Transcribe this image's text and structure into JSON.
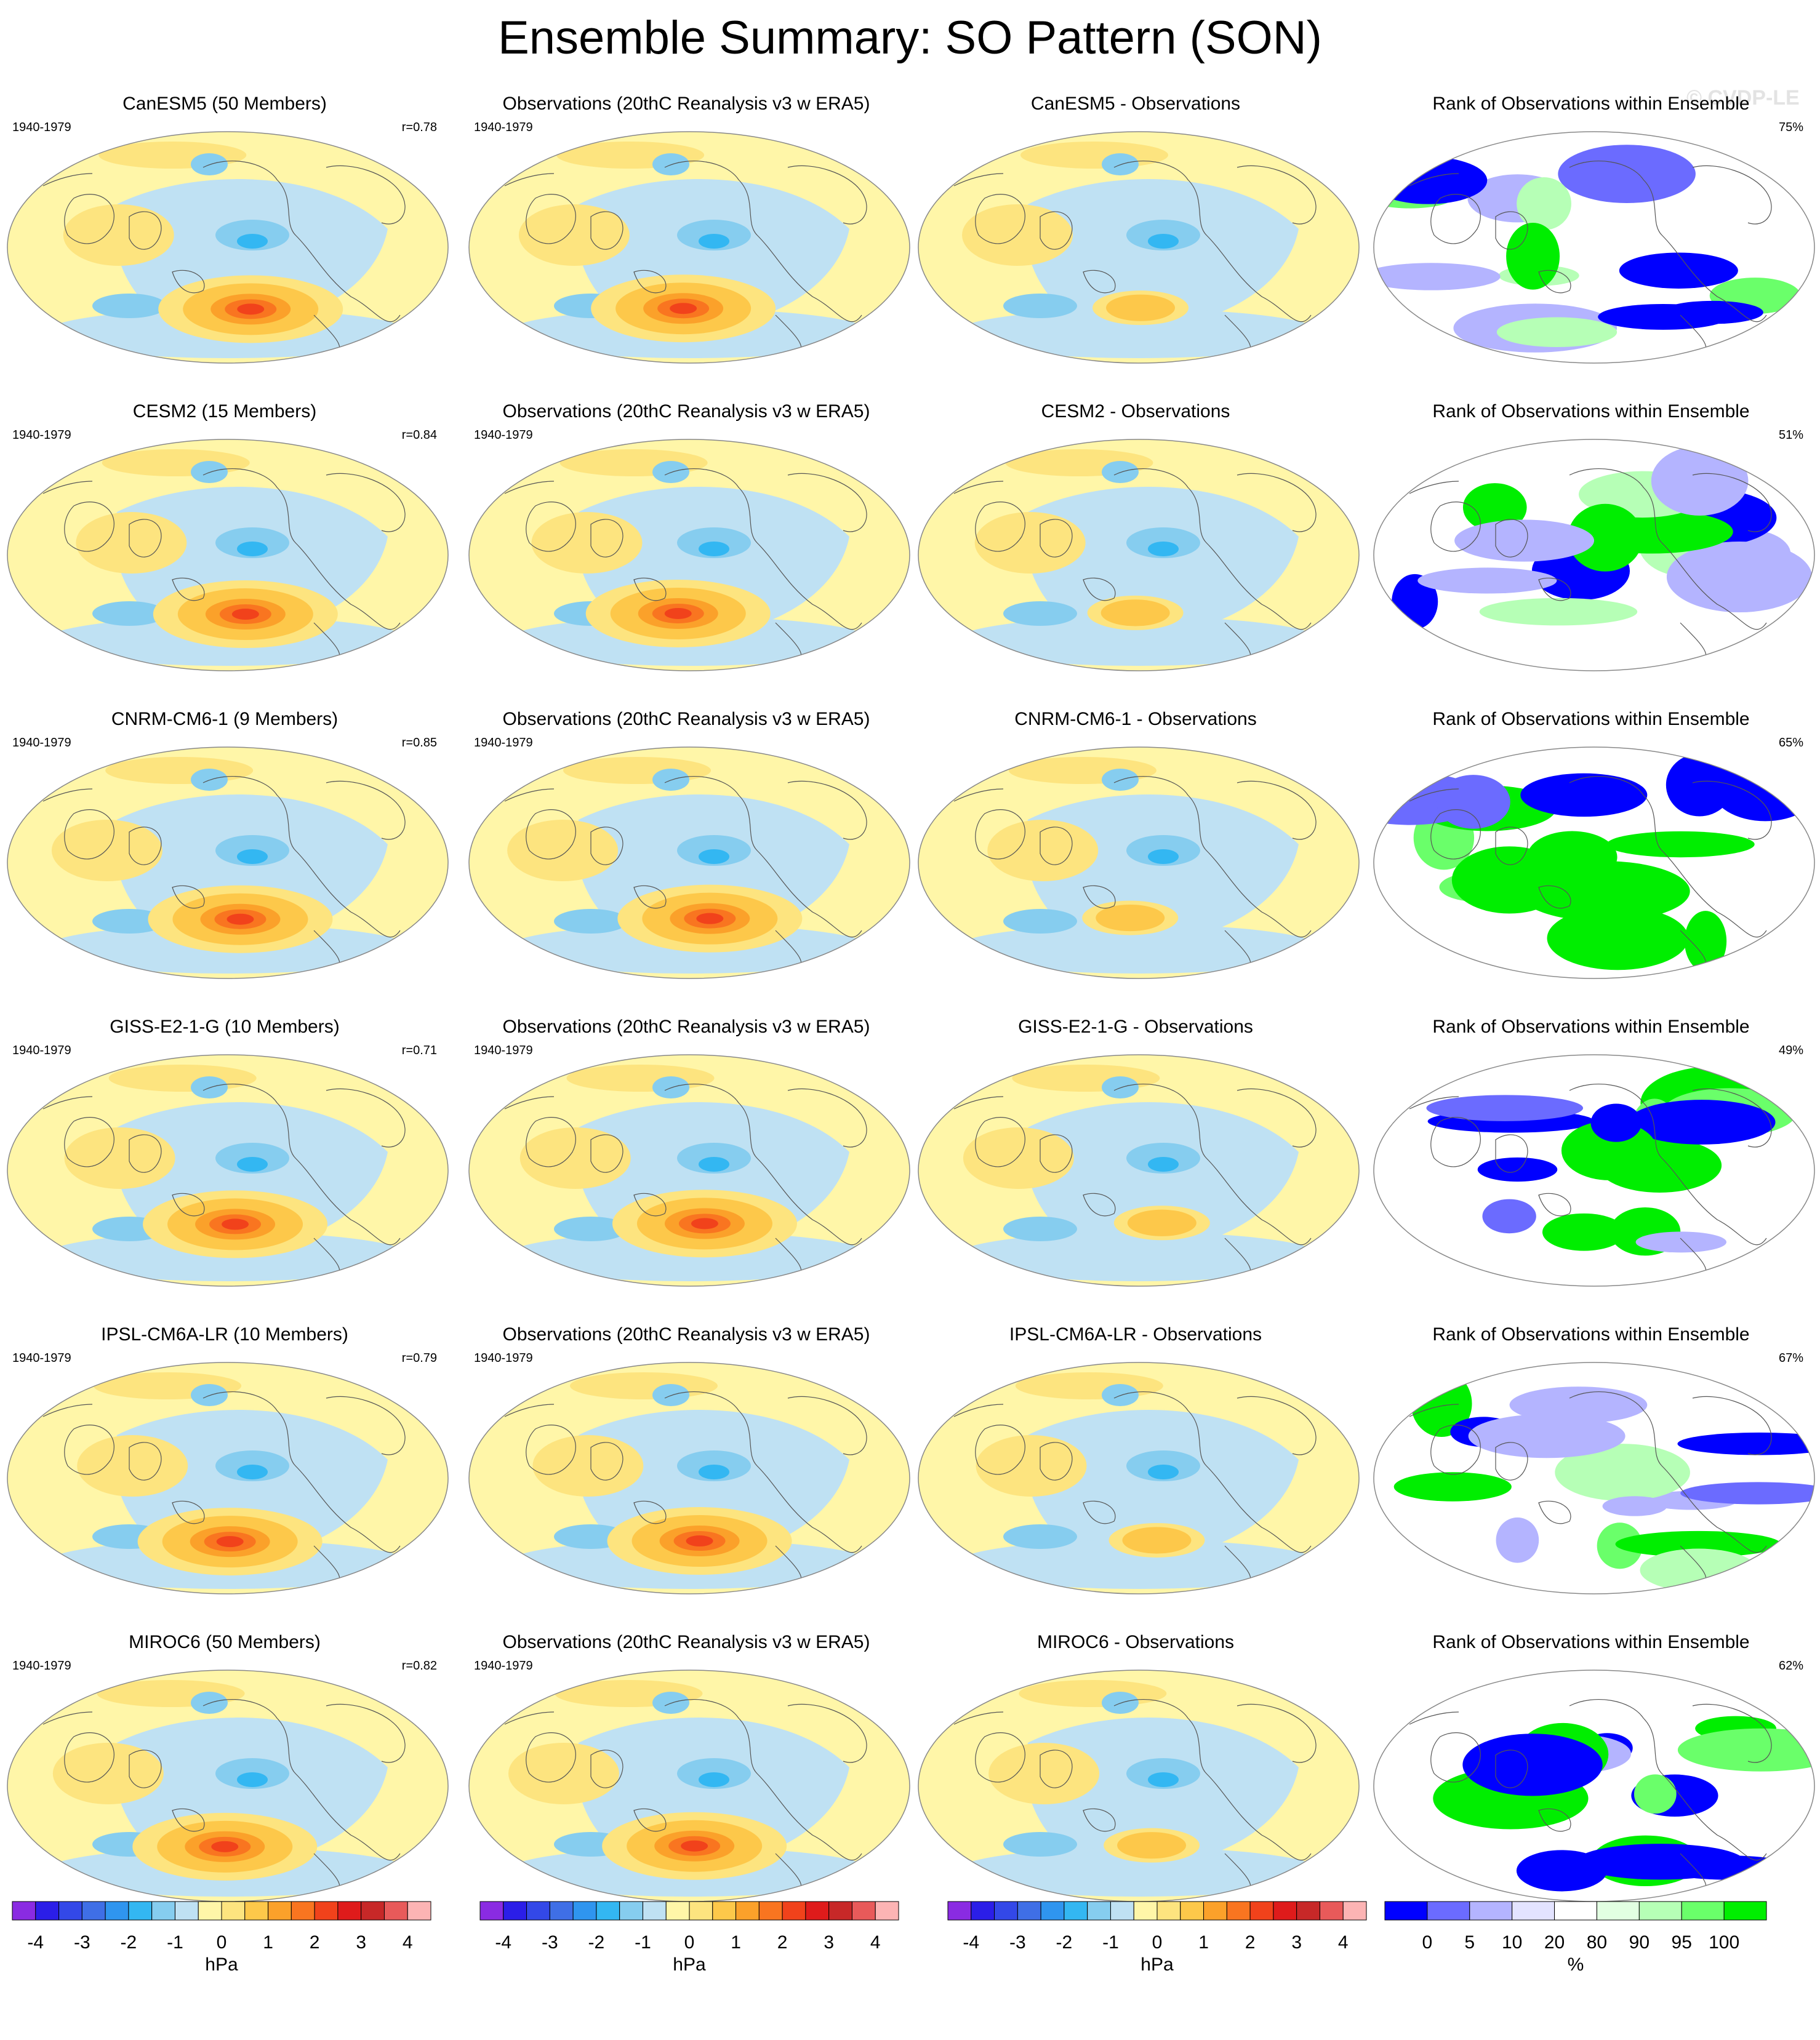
{
  "title": "Ensemble Summary: SO Pattern (SON)",
  "watermark": "© CVDP-LE",
  "colors": {
    "coast": "#555555",
    "ocean_border": "#888888",
    "div_scale": [
      "#8a2be2",
      "#2b1ee8",
      "#3348e8",
      "#3f6fe6",
      "#2f95ef",
      "#33b7f2",
      "#86cdef",
      "#bfe1f3",
      "#fff6a8",
      "#fde47f",
      "#fdc84a",
      "#fba12a",
      "#f97520",
      "#f1421b",
      "#df1b1b",
      "#c72828",
      "#e85a5a",
      "#fcb4b4"
    ],
    "rank_scale": [
      "#0000ff",
      "#6b6bff",
      "#b4b4ff",
      "#e3e3ff",
      "#ffffff",
      "#e2ffe2",
      "#b6ffb6",
      "#6aff6a",
      "#00ee00"
    ]
  },
  "rows": [
    {
      "model": "CanESM5",
      "model_title": "CanESM5 (50 Members)",
      "years": "1940-1979",
      "r": "r=0.78",
      "obs_title": "Observations (20thC Reanalysis v3 w ERA5)",
      "obs_years": "1940-1979",
      "diff_title": "CanESM5 - Observations",
      "rank_title": "Rank of Observations within Ensemble",
      "rank_pct": "75%"
    },
    {
      "model": "CESM2",
      "model_title": "CESM2 (15 Members)",
      "years": "1940-1979",
      "r": "r=0.84",
      "obs_title": "Observations (20thC Reanalysis v3 w ERA5)",
      "obs_years": "1940-1979",
      "diff_title": "CESM2 - Observations",
      "rank_title": "Rank of Observations within Ensemble",
      "rank_pct": "51%"
    },
    {
      "model": "CNRM-CM6-1",
      "model_title": "CNRM-CM6-1 (9 Members)",
      "years": "1940-1979",
      "r": "r=0.85",
      "obs_title": "Observations (20thC Reanalysis v3 w ERA5)",
      "obs_years": "1940-1979",
      "diff_title": "CNRM-CM6-1 - Observations",
      "rank_title": "Rank of Observations within Ensemble",
      "rank_pct": "65%"
    },
    {
      "model": "GISS-E2-1-G",
      "model_title": "GISS-E2-1-G (10 Members)",
      "years": "1940-1979",
      "r": "r=0.71",
      "obs_title": "Observations (20thC Reanalysis v3 w ERA5)",
      "obs_years": "1940-1979",
      "diff_title": "GISS-E2-1-G - Observations",
      "rank_title": "Rank of Observations within Ensemble",
      "rank_pct": "49%"
    },
    {
      "model": "IPSL-CM6A-LR",
      "model_title": "IPSL-CM6A-LR (10 Members)",
      "years": "1940-1979",
      "r": "r=0.79",
      "obs_title": "Observations (20thC Reanalysis v3 w ERA5)",
      "obs_years": "1940-1979",
      "diff_title": "IPSL-CM6A-LR - Observations",
      "rank_title": "Rank of Observations within Ensemble",
      "rank_pct": "67%"
    },
    {
      "model": "MIROC6",
      "model_title": "MIROC6 (50 Members)",
      "years": "1940-1979",
      "r": "r=0.82",
      "obs_title": "Observations (20thC Reanalysis v3 w ERA5)",
      "obs_years": "1940-1979",
      "diff_title": "MIROC6 - Observations",
      "rank_title": "Rank of Observations within Ensemble",
      "rank_pct": "62%"
    }
  ],
  "colorbars": {
    "hpa": {
      "ticks": [
        "-4",
        "-3",
        "-2",
        "-1",
        "0",
        "1",
        "2",
        "3",
        "4"
      ],
      "unit": "hPa"
    },
    "rank": {
      "ticks": [
        "0",
        "5",
        "10",
        "20",
        "80",
        "90",
        "95",
        "100"
      ],
      "unit": "%"
    }
  }
}
